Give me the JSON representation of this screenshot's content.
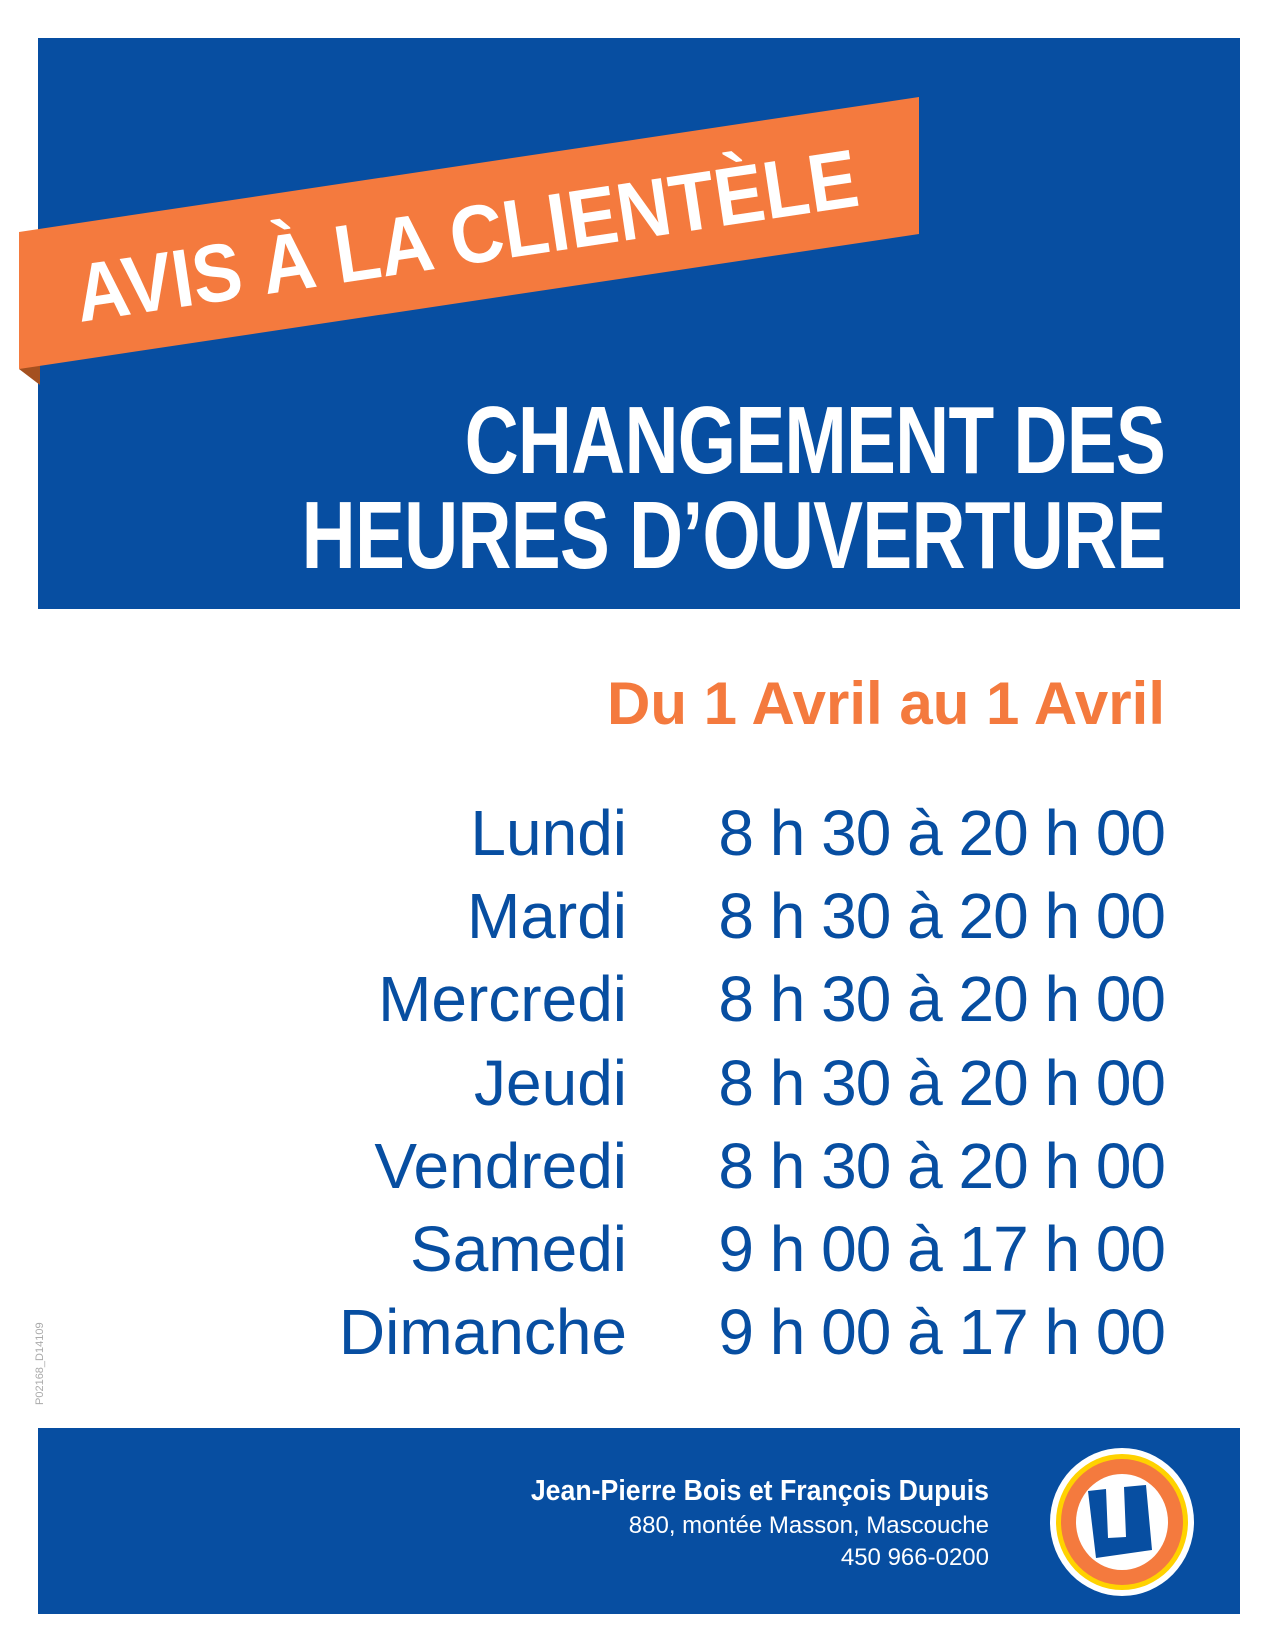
{
  "banner": {
    "ribbon_text": "AVIS À LA CLIENTÈLE",
    "title_line1": "CHANGEMENT DES",
    "title_line2": "HEURES D’OUVERTURE"
  },
  "period": "Du 1 Avril au 1 Avril",
  "schedule": [
    {
      "day": "Lundi",
      "hours": "8 h 30 à 20 h 00"
    },
    {
      "day": "Mardi",
      "hours": "8 h 30 à 20 h 00"
    },
    {
      "day": "Mercredi",
      "hours": "8 h 30 à 20 h 00"
    },
    {
      "day": "Jeudi",
      "hours": "8 h 30 à 20 h 00"
    },
    {
      "day": "Vendredi",
      "hours": "8 h 30 à 20 h 00"
    },
    {
      "day": "Samedi",
      "hours": "9 h 00 à 17 h 00"
    },
    {
      "day": "Dimanche",
      "hours": "9 h 00 à 17 h 00"
    }
  ],
  "doc_code": "P02168_D14109",
  "footer": {
    "owners": "Jean-Pierre Bois et François Dupuis",
    "address": "880, montée Masson, Mascouche",
    "phone": "450 966-0200",
    "logo": "U"
  },
  "colors": {
    "blue": "#074ea1",
    "orange": "#f47a3e",
    "yellow": "#ffd200"
  }
}
